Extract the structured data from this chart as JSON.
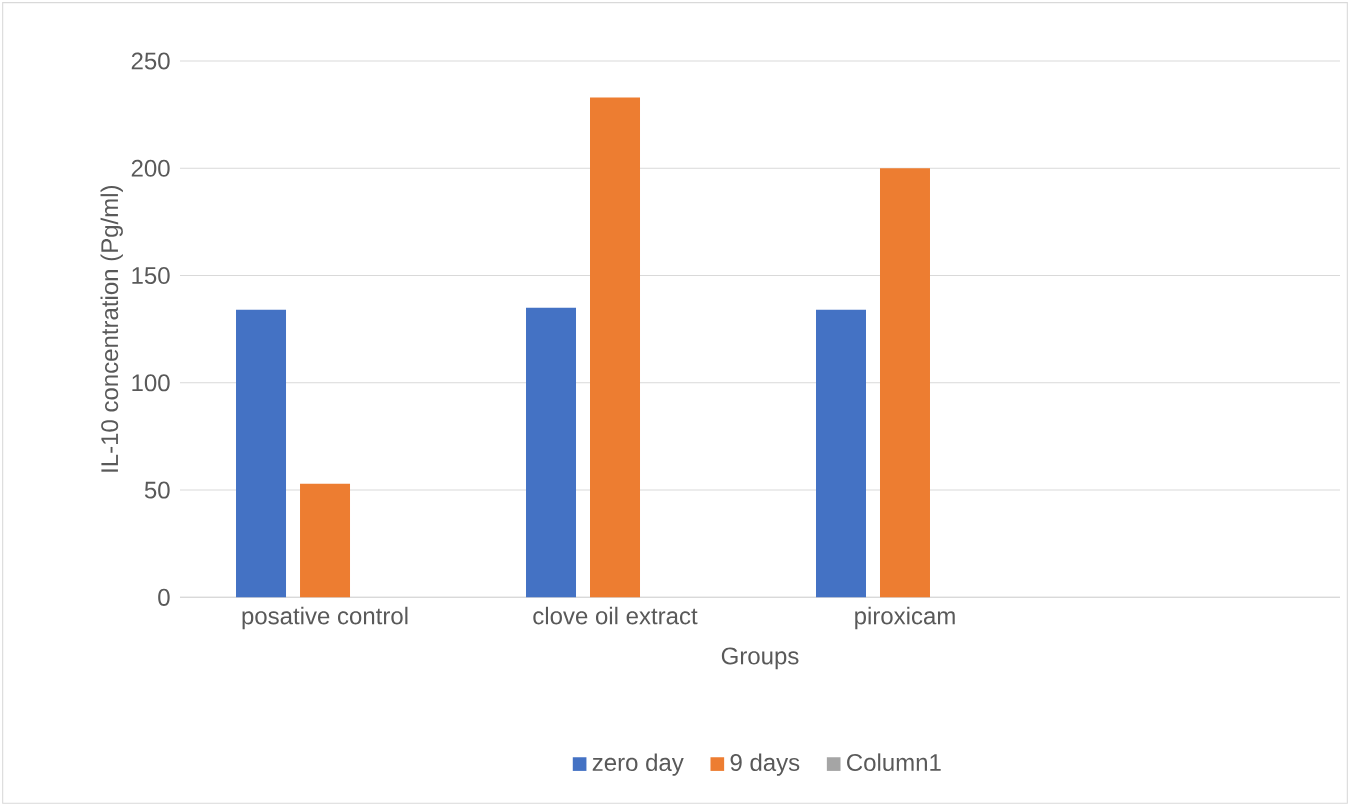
{
  "chart_data": {
    "type": "bar",
    "xlabel": "Groups",
    "ylabel": "IL-10 concentration (Pg/ml)",
    "categories": [
      "posative control",
      "clove oil extract",
      "piroxicam",
      null
    ],
    "series": [
      {
        "name": "zero day",
        "color": "#4472c4",
        "values": [
          134,
          135,
          134,
          null
        ]
      },
      {
        "name": "9 days",
        "color": "#ed7d31",
        "values": [
          53,
          233,
          200,
          null
        ]
      },
      {
        "name": "Column1",
        "color": "#a5a5a5",
        "values": [
          null,
          null,
          null,
          null
        ]
      }
    ],
    "ylim": [
      0,
      250
    ],
    "yticks": [
      0,
      50,
      100,
      150,
      200,
      250
    ],
    "grid": "y",
    "legend": "bottom"
  }
}
